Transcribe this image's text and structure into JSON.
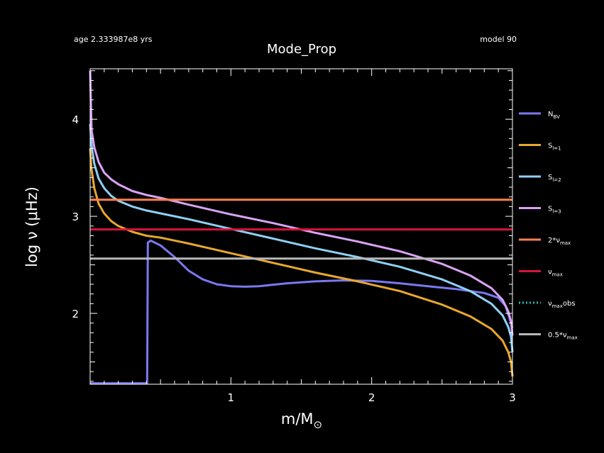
{
  "chart_data": {
    "type": "line",
    "title": "Mode_Prop",
    "header_left": "age 2.333987e8 yrs",
    "header_right": "model 90",
    "xlabel": "m/M⊙",
    "ylabel": "log ν (μHz)",
    "xlim": [
      0,
      3
    ],
    "ylim": [
      1.27,
      4.52
    ],
    "x_ticks": [
      1,
      2,
      3
    ],
    "y_ticks": [
      2,
      3,
      4
    ],
    "grid": false,
    "legend_placement": "right-outside",
    "series": [
      {
        "name": "N_BV",
        "label_main": "N",
        "label_sub": "BV",
        "color": "#7b78f0",
        "style": "solid",
        "x": [
          0.0,
          0.405,
          0.406,
          0.41,
          0.43,
          0.5,
          0.6,
          0.7,
          0.8,
          0.9,
          1.0,
          1.1,
          1.2,
          1.4,
          1.6,
          1.8,
          2.0,
          2.2,
          2.4,
          2.6,
          2.8,
          2.9,
          2.95,
          2.98,
          3.0
        ],
        "y": [
          1.28,
          1.28,
          1.5,
          2.73,
          2.75,
          2.7,
          2.58,
          2.44,
          2.35,
          2.3,
          2.28,
          2.275,
          2.28,
          2.31,
          2.33,
          2.34,
          2.335,
          2.31,
          2.28,
          2.25,
          2.21,
          2.16,
          2.08,
          1.95,
          1.85
        ]
      },
      {
        "name": "S_l=1",
        "label_main": "S",
        "label_sub": "l=1",
        "color": "#e8a82e",
        "style": "solid",
        "x": [
          0.0,
          0.01,
          0.03,
          0.06,
          0.1,
          0.15,
          0.2,
          0.3,
          0.4,
          0.5,
          0.7,
          1.0,
          1.3,
          1.6,
          1.9,
          2.2,
          2.5,
          2.7,
          2.85,
          2.93,
          2.97,
          2.99,
          3.0
        ],
        "y": [
          3.7,
          3.48,
          3.29,
          3.13,
          3.03,
          2.95,
          2.9,
          2.84,
          2.8,
          2.78,
          2.72,
          2.62,
          2.52,
          2.42,
          2.33,
          2.23,
          2.09,
          1.97,
          1.84,
          1.72,
          1.6,
          1.5,
          1.35
        ]
      },
      {
        "name": "S_l=2",
        "label_main": "S",
        "label_sub": "l=2",
        "color": "#8fd0f5",
        "style": "solid",
        "x": [
          0.0,
          0.01,
          0.03,
          0.06,
          0.1,
          0.15,
          0.2,
          0.3,
          0.4,
          0.5,
          0.7,
          1.0,
          1.3,
          1.6,
          1.9,
          2.2,
          2.5,
          2.7,
          2.85,
          2.93,
          2.97,
          2.99,
          3.0
        ],
        "y": [
          3.95,
          3.73,
          3.54,
          3.39,
          3.29,
          3.21,
          3.16,
          3.1,
          3.06,
          3.03,
          2.97,
          2.87,
          2.77,
          2.67,
          2.58,
          2.48,
          2.35,
          2.23,
          2.1,
          1.98,
          1.86,
          1.76,
          1.6
        ]
      },
      {
        "name": "S_l=3",
        "label_main": "S",
        "label_sub": "l=3",
        "color": "#d9a3f5",
        "style": "solid",
        "x": [
          0.0,
          0.01,
          0.03,
          0.06,
          0.1,
          0.15,
          0.2,
          0.3,
          0.4,
          0.5,
          0.7,
          1.0,
          1.3,
          1.6,
          1.9,
          2.2,
          2.5,
          2.7,
          2.85,
          2.93,
          2.97,
          2.99,
          3.0
        ],
        "y": [
          4.5,
          3.89,
          3.71,
          3.56,
          3.45,
          3.38,
          3.33,
          3.26,
          3.22,
          3.19,
          3.12,
          3.02,
          2.93,
          2.83,
          2.74,
          2.64,
          2.51,
          2.39,
          2.26,
          2.14,
          2.02,
          1.92,
          1.77
        ]
      },
      {
        "name": "2*nu_max",
        "label_main": "2*ν",
        "label_sub": "max",
        "color": "#ff8050",
        "style": "solid",
        "x": [
          0,
          3
        ],
        "y": [
          3.17,
          3.17
        ]
      },
      {
        "name": "nu_max",
        "label_main": "ν",
        "label_sub": "max",
        "color": "#d6143c",
        "style": "solid",
        "x": [
          0,
          3
        ],
        "y": [
          2.865,
          2.865
        ]
      },
      {
        "name": "nu_max_obs",
        "label_main": "ν",
        "label_sub": "max",
        "label_tail": "obs",
        "color": "#2ab8b0",
        "style": "dotted",
        "x": [],
        "y": []
      },
      {
        "name": "0.5*nu_max",
        "label_main": "0.5*ν",
        "label_sub": "max",
        "color": "#b8b8b8",
        "style": "solid",
        "x": [
          0,
          3
        ],
        "y": [
          2.565,
          2.565
        ]
      }
    ]
  }
}
